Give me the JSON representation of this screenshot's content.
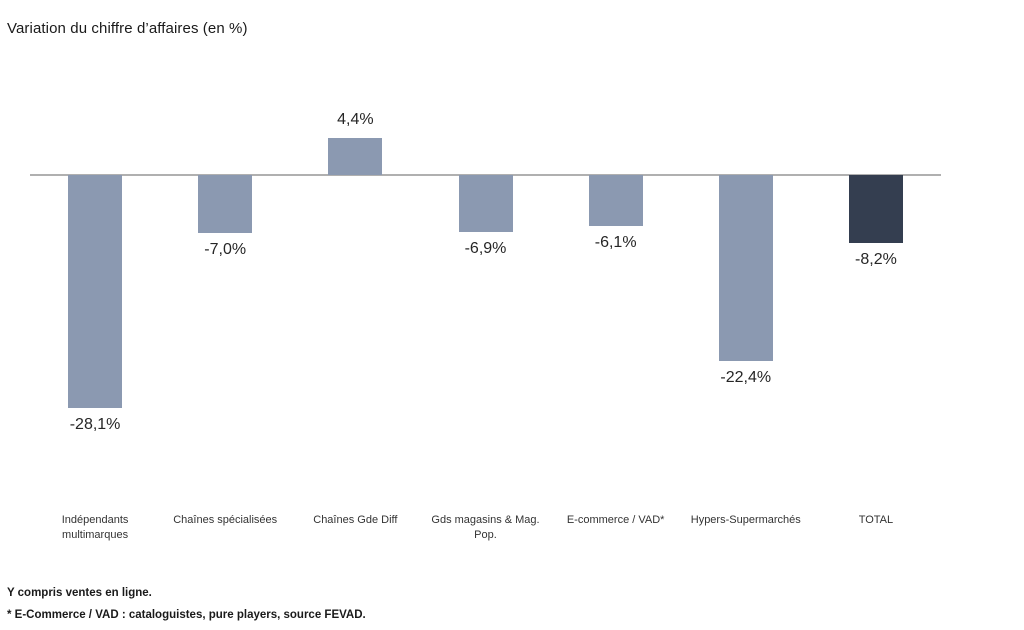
{
  "title": "Variation du chiffre d’affaires (en %)",
  "colors": {
    "bar": "#8b99b1",
    "highlight_bar": "#343e50",
    "axis_line": "#b0b0b0"
  },
  "footnotes": [
    "Y compris ventes en ligne.",
    "* E-Commerce / VAD : cataloguistes, pure players, source FEVAD."
  ],
  "chart_data": {
    "type": "bar",
    "title": "Variation du chiffre d’affaires (en %)",
    "categories": [
      "Indépendants multimarques",
      "Chaînes spécialisées",
      "Chaînes Gde Diff",
      "Gds magasins & Mag. Pop.",
      "E-commerce / VAD*",
      "Hypers-Supermarchés",
      "TOTAL"
    ],
    "values": [
      -28.1,
      -7.0,
      4.4,
      -6.9,
      -6.1,
      -22.4,
      -8.2
    ],
    "value_labels": [
      "-28,1%",
      "-7,0%",
      "4,4%",
      "-6,9%",
      "-6,1%",
      "-22,4%",
      "-8,2%"
    ],
    "highlight_category": "TOTAL",
    "xlabel": "",
    "ylabel": "",
    "ylim": [
      -30,
      6
    ],
    "grid": false,
    "legend": null,
    "data_labels": true,
    "baseline": 0
  }
}
